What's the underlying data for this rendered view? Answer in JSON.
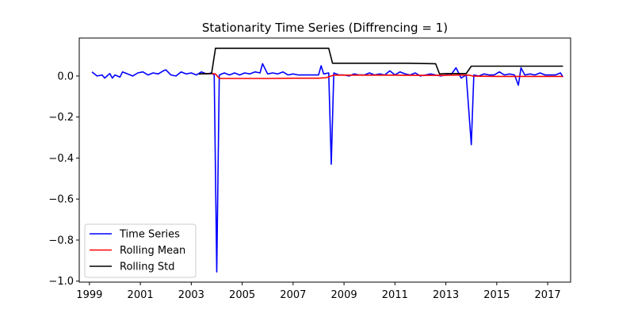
{
  "chart_data": {
    "type": "line",
    "title": "Stationarity Time Series (Diffrencing = 1)",
    "xlabel": "",
    "ylabel": "",
    "xlim": [
      1998.6,
      2017.9
    ],
    "ylim": [
      -1.005,
      0.185
    ],
    "x_ticks": [
      1999,
      2001,
      2003,
      2005,
      2007,
      2009,
      2011,
      2013,
      2015,
      2017
    ],
    "x_tick_labels": [
      "1999",
      "2001",
      "2003",
      "2005",
      "2007",
      "2009",
      "2011",
      "2013",
      "2015",
      "2017"
    ],
    "y_ticks": [
      0.0,
      -0.2,
      -0.4,
      -0.6,
      -0.8,
      -1.0
    ],
    "y_tick_labels": [
      "0.0",
      "−0.2",
      "−0.4",
      "−0.6",
      "−0.8",
      "−1.0"
    ],
    "grid": false,
    "legend_position": "lower-left",
    "series": [
      {
        "name": "Time Series",
        "color": "#0000ff",
        "points": [
          [
            1999.1,
            0.02
          ],
          [
            1999.3,
            0.0
          ],
          [
            1999.5,
            0.005
          ],
          [
            1999.6,
            -0.01
          ],
          [
            1999.8,
            0.012
          ],
          [
            1999.9,
            -0.01
          ],
          [
            2000.0,
            0.005
          ],
          [
            2000.2,
            -0.005
          ],
          [
            2000.3,
            0.02
          ],
          [
            2000.5,
            0.01
          ],
          [
            2000.7,
            0.0
          ],
          [
            2000.9,
            0.015
          ],
          [
            2001.1,
            0.02
          ],
          [
            2001.3,
            0.005
          ],
          [
            2001.5,
            0.015
          ],
          [
            2001.7,
            0.01
          ],
          [
            2001.9,
            0.025
          ],
          [
            2002.0,
            0.03
          ],
          [
            2002.2,
            0.005
          ],
          [
            2002.4,
            0.0
          ],
          [
            2002.6,
            0.02
          ],
          [
            2002.8,
            0.01
          ],
          [
            2003.0,
            0.015
          ],
          [
            2003.2,
            0.005
          ],
          [
            2003.4,
            0.02
          ],
          [
            2003.6,
            0.01
          ],
          [
            2003.8,
            0.015
          ],
          [
            2003.9,
            0.005
          ],
          [
            2004.0,
            -0.955
          ],
          [
            2004.1,
            0.005
          ],
          [
            2004.3,
            0.015
          ],
          [
            2004.5,
            0.005
          ],
          [
            2004.7,
            0.015
          ],
          [
            2004.9,
            0.005
          ],
          [
            2005.1,
            0.015
          ],
          [
            2005.3,
            0.01
          ],
          [
            2005.5,
            0.02
          ],
          [
            2005.7,
            0.015
          ],
          [
            2005.8,
            0.06
          ],
          [
            2006.0,
            0.01
          ],
          [
            2006.2,
            0.015
          ],
          [
            2006.4,
            0.01
          ],
          [
            2006.6,
            0.02
          ],
          [
            2006.8,
            0.005
          ],
          [
            2007.0,
            0.01
          ],
          [
            2007.2,
            0.005
          ],
          [
            2007.4,
            0.005
          ],
          [
            2007.6,
            0.005
          ],
          [
            2007.8,
            0.005
          ],
          [
            2008.0,
            0.005
          ],
          [
            2008.1,
            0.05
          ],
          [
            2008.2,
            0.01
          ],
          [
            2008.4,
            0.015
          ],
          [
            2008.5,
            -0.43
          ],
          [
            2008.6,
            0.015
          ],
          [
            2008.8,
            0.005
          ],
          [
            2009.0,
            0.005
          ],
          [
            2009.2,
            0.0
          ],
          [
            2009.4,
            0.01
          ],
          [
            2009.6,
            0.005
          ],
          [
            2009.8,
            0.005
          ],
          [
            2010.0,
            0.015
          ],
          [
            2010.2,
            0.005
          ],
          [
            2010.4,
            0.01
          ],
          [
            2010.6,
            0.005
          ],
          [
            2010.8,
            0.025
          ],
          [
            2011.0,
            0.005
          ],
          [
            2011.2,
            0.02
          ],
          [
            2011.4,
            0.01
          ],
          [
            2011.6,
            0.005
          ],
          [
            2011.8,
            0.015
          ],
          [
            2012.0,
            0.0
          ],
          [
            2012.2,
            0.005
          ],
          [
            2012.4,
            0.01
          ],
          [
            2012.6,
            0.005
          ],
          [
            2012.8,
            0.0
          ],
          [
            2013.0,
            0.005
          ],
          [
            2013.2,
            0.005
          ],
          [
            2013.4,
            0.04
          ],
          [
            2013.6,
            -0.01
          ],
          [
            2013.8,
            0.005
          ],
          [
            2014.0,
            -0.335
          ],
          [
            2014.1,
            0.005
          ],
          [
            2014.3,
            0.0
          ],
          [
            2014.5,
            0.01
          ],
          [
            2014.7,
            0.005
          ],
          [
            2014.9,
            0.005
          ],
          [
            2015.1,
            0.02
          ],
          [
            2015.3,
            0.005
          ],
          [
            2015.5,
            0.01
          ],
          [
            2015.7,
            0.005
          ],
          [
            2015.85,
            -0.045
          ],
          [
            2015.95,
            0.04
          ],
          [
            2016.1,
            0.005
          ],
          [
            2016.3,
            0.01
          ],
          [
            2016.5,
            0.005
          ],
          [
            2016.7,
            0.015
          ],
          [
            2016.9,
            0.005
          ],
          [
            2017.1,
            0.005
          ],
          [
            2017.3,
            0.005
          ],
          [
            2017.5,
            0.015
          ],
          [
            2017.6,
            -0.005
          ]
        ]
      },
      {
        "name": "Rolling Mean",
        "color": "#ff0000",
        "points": [
          [
            2003.3,
            0.01
          ],
          [
            2003.8,
            0.012
          ],
          [
            2003.95,
            0.01
          ],
          [
            2004.1,
            -0.012
          ],
          [
            2005.0,
            -0.012
          ],
          [
            2006.0,
            -0.012
          ],
          [
            2007.0,
            -0.011
          ],
          [
            2008.0,
            -0.011
          ],
          [
            2008.3,
            -0.008
          ],
          [
            2008.6,
            0.004
          ],
          [
            2009.0,
            0.004
          ],
          [
            2010.0,
            0.004
          ],
          [
            2011.0,
            0.004
          ],
          [
            2012.0,
            0.003
          ],
          [
            2012.7,
            0.003
          ],
          [
            2012.9,
            0.003
          ],
          [
            2013.5,
            0.005
          ],
          [
            2013.9,
            0.004
          ],
          [
            2014.1,
            -0.001
          ],
          [
            2015.0,
            -0.002
          ],
          [
            2016.0,
            -0.002
          ],
          [
            2017.0,
            -0.002
          ],
          [
            2017.6,
            -0.002
          ]
        ]
      },
      {
        "name": "Rolling Std",
        "color": "#000000",
        "points": [
          [
            2003.3,
            0.01
          ],
          [
            2003.8,
            0.012
          ],
          [
            2003.95,
            0.135
          ],
          [
            2005.0,
            0.135
          ],
          [
            2006.0,
            0.135
          ],
          [
            2007.0,
            0.135
          ],
          [
            2008.1,
            0.135
          ],
          [
            2008.4,
            0.135
          ],
          [
            2008.55,
            0.062
          ],
          [
            2009.5,
            0.062
          ],
          [
            2010.5,
            0.062
          ],
          [
            2011.5,
            0.062
          ],
          [
            2012.6,
            0.06
          ],
          [
            2012.75,
            0.01
          ],
          [
            2013.0,
            0.012
          ],
          [
            2013.8,
            0.012
          ],
          [
            2014.0,
            0.048
          ],
          [
            2015.0,
            0.048
          ],
          [
            2016.0,
            0.048
          ],
          [
            2017.0,
            0.048
          ],
          [
            2017.6,
            0.048
          ]
        ]
      }
    ]
  }
}
